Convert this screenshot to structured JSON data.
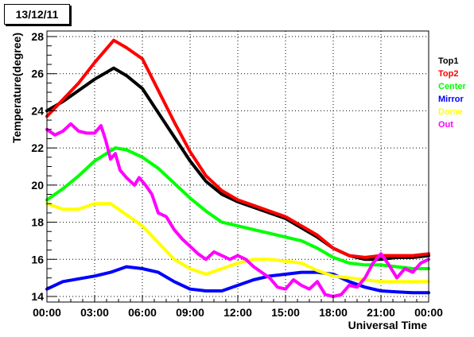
{
  "chart_data": {
    "type": "line",
    "title": "13/12/11",
    "xlabel": "Universal Time",
    "ylabel": "Temperature(degree)",
    "x_ticks": [
      "00:00",
      "03:00",
      "06:00",
      "09:00",
      "12:00",
      "15:00",
      "18:00",
      "21:00",
      "00:00"
    ],
    "y_ticks": [
      "14",
      "16",
      "18",
      "20",
      "22",
      "24",
      "26",
      "28"
    ],
    "xlim": [
      0,
      24
    ],
    "ylim": [
      13.7,
      28.3
    ],
    "grid": true,
    "legend_position": "right",
    "series": [
      {
        "name": "Top1",
        "color": "#000000",
        "points": [
          [
            0,
            24.0
          ],
          [
            1,
            24.5
          ],
          [
            2,
            25.1
          ],
          [
            3,
            25.7
          ],
          [
            4.2,
            26.3
          ],
          [
            5,
            25.9
          ],
          [
            6,
            25.2
          ],
          [
            7,
            23.9
          ],
          [
            8,
            22.6
          ],
          [
            9,
            21.3
          ],
          [
            10,
            20.2
          ],
          [
            11,
            19.5
          ],
          [
            12,
            19.1
          ],
          [
            13,
            18.8
          ],
          [
            14,
            18.5
          ],
          [
            15,
            18.2
          ],
          [
            16,
            17.7
          ],
          [
            17,
            17.2
          ],
          [
            18,
            16.6
          ],
          [
            19,
            16.2
          ],
          [
            20,
            16.0
          ],
          [
            21,
            16.0
          ],
          [
            22,
            16.1
          ],
          [
            23,
            16.1
          ],
          [
            24,
            16.2
          ]
        ]
      },
      {
        "name": "Top2",
        "color": "#ff0000",
        "points": [
          [
            0,
            23.7
          ],
          [
            1,
            24.6
          ],
          [
            2,
            25.5
          ],
          [
            3,
            26.6
          ],
          [
            4.2,
            27.8
          ],
          [
            5,
            27.4
          ],
          [
            6,
            26.8
          ],
          [
            7,
            25.1
          ],
          [
            8,
            23.4
          ],
          [
            9,
            21.8
          ],
          [
            10,
            20.5
          ],
          [
            11,
            19.7
          ],
          [
            12,
            19.2
          ],
          [
            13,
            18.9
          ],
          [
            14,
            18.6
          ],
          [
            15,
            18.3
          ],
          [
            16,
            17.8
          ],
          [
            17,
            17.3
          ],
          [
            18,
            16.6
          ],
          [
            19,
            16.2
          ],
          [
            20,
            16.1
          ],
          [
            21,
            16.2
          ],
          [
            22,
            16.2
          ],
          [
            23,
            16.2
          ],
          [
            24,
            16.3
          ]
        ]
      },
      {
        "name": "Center",
        "color": "#00ff00",
        "points": [
          [
            0,
            19.2
          ],
          [
            1,
            19.8
          ],
          [
            2,
            20.5
          ],
          [
            3,
            21.3
          ],
          [
            4.3,
            22.0
          ],
          [
            5,
            21.9
          ],
          [
            6,
            21.5
          ],
          [
            7,
            20.9
          ],
          [
            8,
            20.1
          ],
          [
            9,
            19.3
          ],
          [
            10,
            18.6
          ],
          [
            11,
            18.0
          ],
          [
            12,
            17.8
          ],
          [
            13,
            17.6
          ],
          [
            14,
            17.4
          ],
          [
            15,
            17.2
          ],
          [
            16,
            17.0
          ],
          [
            17,
            16.6
          ],
          [
            18,
            16.1
          ],
          [
            19,
            15.8
          ],
          [
            20,
            15.7
          ],
          [
            21,
            15.7
          ],
          [
            22,
            15.6
          ],
          [
            23,
            15.5
          ],
          [
            24,
            15.5
          ]
        ]
      },
      {
        "name": "Mirror",
        "color": "#0000ff",
        "points": [
          [
            0,
            14.4
          ],
          [
            1,
            14.8
          ],
          [
            2,
            14.95
          ],
          [
            3,
            15.1
          ],
          [
            4,
            15.3
          ],
          [
            5,
            15.6
          ],
          [
            6,
            15.5
          ],
          [
            7,
            15.3
          ],
          [
            8,
            14.8
          ],
          [
            9,
            14.4
          ],
          [
            10,
            14.3
          ],
          [
            11,
            14.3
          ],
          [
            12,
            14.6
          ],
          [
            13,
            14.9
          ],
          [
            14,
            15.1
          ],
          [
            15,
            15.2
          ],
          [
            16,
            15.3
          ],
          [
            17,
            15.3
          ],
          [
            18,
            15.2
          ],
          [
            19,
            14.8
          ],
          [
            20,
            14.5
          ],
          [
            21,
            14.3
          ],
          [
            22,
            14.25
          ],
          [
            23,
            14.2
          ],
          [
            24,
            14.2
          ]
        ]
      },
      {
        "name": "Dome",
        "color": "#ffff00",
        "points": [
          [
            0,
            19.0
          ],
          [
            1,
            18.7
          ],
          [
            2,
            18.7
          ],
          [
            3,
            19.0
          ],
          [
            4,
            19.0
          ],
          [
            5,
            18.4
          ],
          [
            6,
            17.8
          ],
          [
            7,
            16.9
          ],
          [
            8,
            16.0
          ],
          [
            9,
            15.5
          ],
          [
            10,
            15.2
          ],
          [
            11,
            15.5
          ],
          [
            12,
            15.8
          ],
          [
            13,
            16.0
          ],
          [
            14,
            16.0
          ],
          [
            15,
            15.9
          ],
          [
            16,
            15.8
          ],
          [
            17,
            15.4
          ],
          [
            18,
            15.1
          ],
          [
            19,
            15.0
          ],
          [
            20,
            14.9
          ],
          [
            21,
            14.8
          ],
          [
            22,
            14.8
          ],
          [
            23,
            14.8
          ],
          [
            24,
            14.8
          ]
        ]
      },
      {
        "name": "Out",
        "color": "#ff00ff",
        "points": [
          [
            0,
            23.0
          ],
          [
            0.5,
            22.7
          ],
          [
            1,
            22.9
          ],
          [
            1.5,
            23.3
          ],
          [
            2,
            22.9
          ],
          [
            2.5,
            22.8
          ],
          [
            3,
            22.8
          ],
          [
            3.4,
            23.2
          ],
          [
            3.7,
            22.4
          ],
          [
            4,
            21.4
          ],
          [
            4.3,
            21.7
          ],
          [
            4.6,
            20.8
          ],
          [
            5,
            20.4
          ],
          [
            5.5,
            20.0
          ],
          [
            5.8,
            20.4
          ],
          [
            6.2,
            20.0
          ],
          [
            6.6,
            19.5
          ],
          [
            7,
            18.5
          ],
          [
            7.5,
            18.3
          ],
          [
            8,
            17.6
          ],
          [
            8.5,
            17.1
          ],
          [
            9,
            16.7
          ],
          [
            9.5,
            16.3
          ],
          [
            10,
            16.0
          ],
          [
            10.5,
            16.4
          ],
          [
            11,
            16.2
          ],
          [
            11.5,
            16.0
          ],
          [
            12,
            16.2
          ],
          [
            12.5,
            16.0
          ],
          [
            13,
            15.6
          ],
          [
            13.5,
            15.3
          ],
          [
            14,
            15.0
          ],
          [
            14.5,
            14.5
          ],
          [
            15,
            14.4
          ],
          [
            15.5,
            14.9
          ],
          [
            16,
            14.6
          ],
          [
            16.5,
            14.4
          ],
          [
            17,
            14.8
          ],
          [
            17.5,
            14.1
          ],
          [
            18,
            14.0
          ],
          [
            18.5,
            14.1
          ],
          [
            19,
            14.6
          ],
          [
            19.5,
            14.5
          ],
          [
            20,
            15.0
          ],
          [
            20.5,
            15.8
          ],
          [
            21,
            16.3
          ],
          [
            21.5,
            15.7
          ],
          [
            22,
            15.0
          ],
          [
            22.5,
            15.5
          ],
          [
            23,
            15.3
          ],
          [
            23.5,
            15.8
          ],
          [
            24,
            16.0
          ]
        ]
      }
    ]
  }
}
